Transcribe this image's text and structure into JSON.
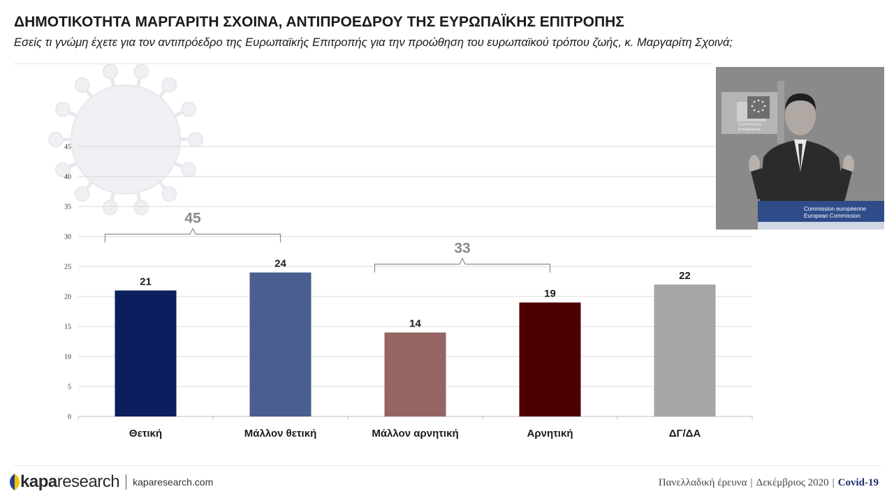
{
  "header": {
    "title": "ΔΗΜΟΤΙΚΟΤΗΤΑ ΜΑΡΓΑΡΙΤΗ ΣΧΟΙΝΑ, ΑΝΤΙΠΡΟΕΔΡΟΥ ΤΗΣ ΕΥΡΩΠΑΪΚΗΣ ΕΠΙΤΡΟΠΗΣ",
    "subtitle": "Εσείς τι γνώμη έχετε για τον αντιπρόεδρο της Ευρωπαϊκής Επιτροπής για την προώθηση του ευρωπαϊκού τρόπου ζωής, κ. Μαργαρίτη Σχοινά;"
  },
  "chart_data": {
    "type": "bar",
    "categories": [
      "Θετική",
      "Μάλλον θετική",
      "Μάλλον αρνητική",
      "Αρνητική",
      "ΔΓ/ΔΑ"
    ],
    "values": [
      21,
      24,
      14,
      19,
      22
    ],
    "colors": [
      "#0b1f5e",
      "#4a5f8f",
      "#946563",
      "#4d0003",
      "#a6a6a6"
    ],
    "ylim": [
      0,
      45
    ],
    "yticks": [
      0,
      5,
      10,
      15,
      20,
      25,
      30,
      35,
      40,
      45
    ],
    "grid": true,
    "brackets": [
      {
        "from": 0,
        "to": 1,
        "label": "45"
      },
      {
        "from": 2,
        "to": 3,
        "label": "33"
      }
    ]
  },
  "photo": {
    "sign_line1": "Commission européenne",
    "sign_line2": "European Commission",
    "backdrop_line1": "Commission",
    "backdrop_line2": "européenne"
  },
  "footer": {
    "brand_bold": "kapa",
    "brand_light": "research",
    "site": "kaparesearch.com",
    "survey": "Πανελλαδική έρευνα",
    "date": "Δεκέμβριος 2020",
    "topic": "Covid-19",
    "separator": "|"
  },
  "colors": {
    "logo_blue": "#2a3f8f",
    "logo_yellow": "#f2c500"
  }
}
